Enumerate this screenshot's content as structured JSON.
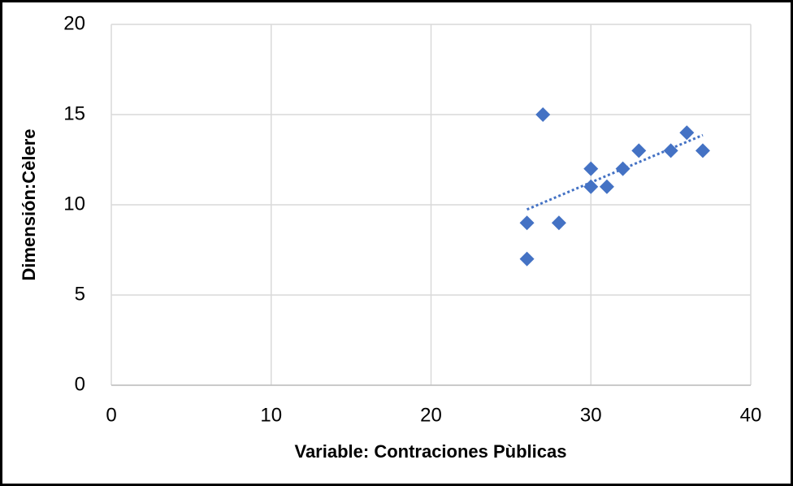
{
  "chart_data": {
    "type": "scatter",
    "x_label": "Variable: Contraciones Pùblicas",
    "y_label": "Dimensión:Cèlere",
    "x": [
      26,
      26,
      27,
      28,
      30,
      30,
      31,
      32,
      33,
      35,
      36,
      37
    ],
    "values": [
      9,
      7,
      15,
      9,
      12,
      11,
      11,
      12,
      13,
      13,
      14,
      13
    ],
    "color": "#4472c4",
    "trendline": "linear",
    "xlim": [
      0,
      40
    ],
    "xticks": [
      0,
      10,
      20,
      30,
      40
    ],
    "ylim": [
      0,
      20
    ],
    "yticks": [
      0,
      5,
      10,
      15,
      20
    ],
    "grid": true
  }
}
